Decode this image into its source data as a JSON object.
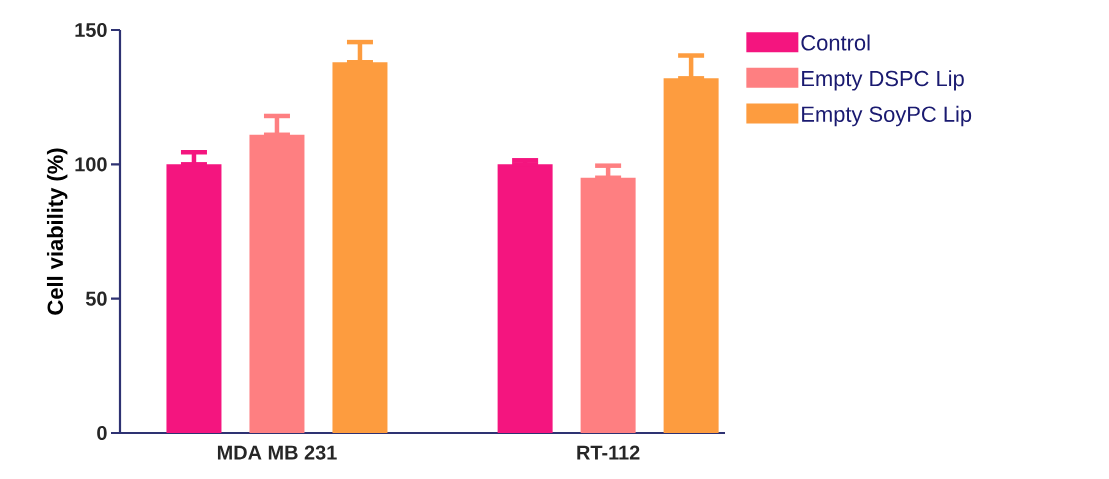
{
  "chart_data": {
    "type": "bar",
    "ylabel": "Cell viability (%)",
    "categories": [
      "MDA MB 231",
      "RT-112"
    ],
    "series": [
      {
        "name": "Control",
        "color": "#f4157f",
        "values": [
          100,
          100
        ],
        "errors": [
          [
            100,
            104.5
          ],
          [
            100,
            101.5
          ]
        ]
      },
      {
        "name": "Empty DSPC Lip",
        "color": "#fe7f81",
        "values": [
          111,
          95
        ],
        "errors": [
          [
            111,
            118
          ],
          [
            95,
            99.5
          ]
        ]
      },
      {
        "name": "Empty SoyPC Lip",
        "color": "#fd9c3f",
        "values": [
          138,
          132
        ],
        "errors": [
          [
            138,
            145.5
          ],
          [
            132,
            140.5
          ]
        ]
      }
    ],
    "ylim": [
      0,
      150
    ],
    "yticks": [
      0,
      50,
      100,
      150
    ],
    "grid": false,
    "legend": "top right"
  }
}
